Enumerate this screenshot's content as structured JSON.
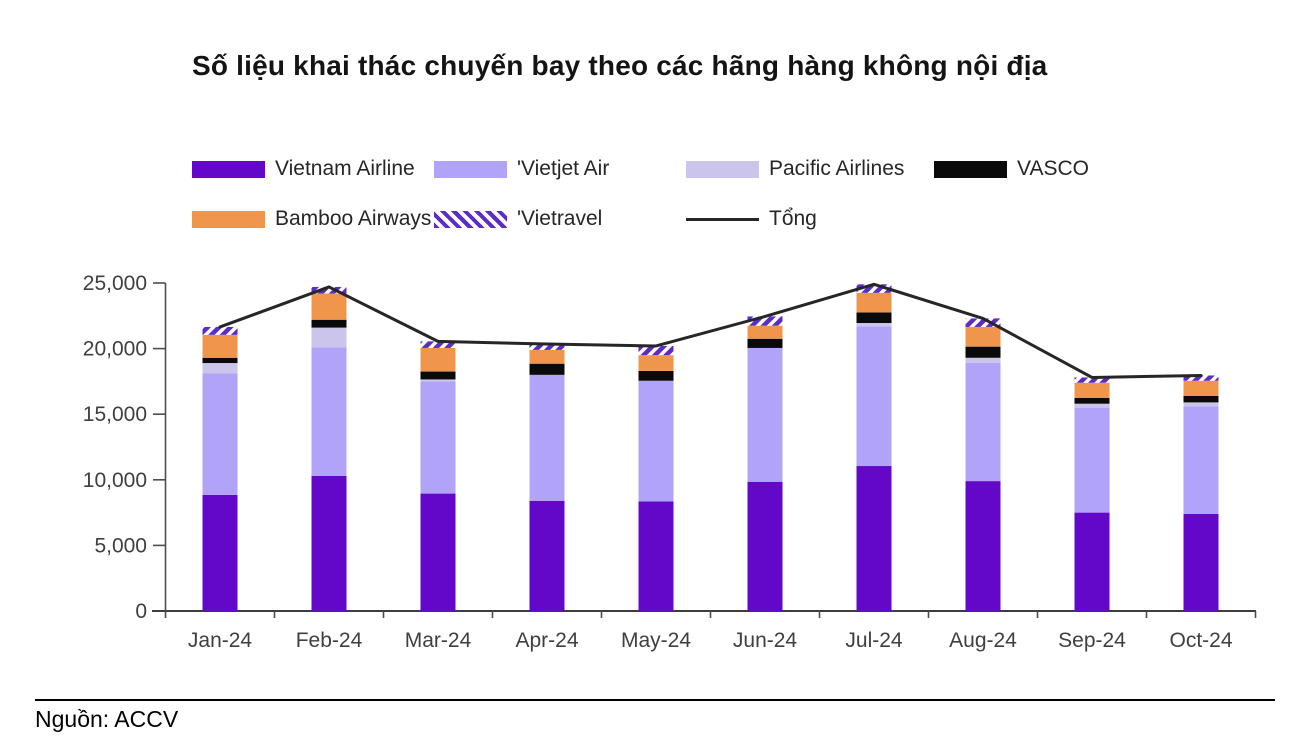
{
  "title": "Số liệu khai thác chuyến bay theo các hãng hàng không nội địa",
  "legend": {
    "items": [
      {
        "label": "Vietnam Airline",
        "swatch": "solid",
        "color": "#6307C8"
      },
      {
        "label": "'Vietjet Air",
        "swatch": "solid",
        "color": "#B0A3F8"
      },
      {
        "label": "Pacific Airlines",
        "swatch": "solid",
        "color": "#CBC4EB"
      },
      {
        "label": "VASCO",
        "swatch": "solid",
        "color": "#0A0A0A"
      },
      {
        "label": "Bamboo Airways",
        "swatch": "solid",
        "color": "#F0964C"
      },
      {
        "label": "'Vietravel",
        "swatch": "stripes",
        "color": "#5C2BC8"
      },
      {
        "label": "Tổng",
        "swatch": "line",
        "color": "#262626"
      }
    ]
  },
  "chart_data": {
    "type": "bar",
    "subtype": "stacked-bars-with-total-line",
    "title": "Số liệu khai thác chuyến bay theo các hãng hàng không nội địa",
    "categories": [
      "Jan-24",
      "Feb-24",
      "Mar-24",
      "Apr-24",
      "May-24",
      "Jun-24",
      "Jul-24",
      "Aug-24",
      "Sep-24",
      "Oct-24"
    ],
    "series": [
      {
        "name": "Vietnam Airline",
        "color": "#6307C8",
        "values": [
          8850,
          10300,
          8950,
          8400,
          8350,
          9850,
          11050,
          9900,
          7500,
          7400
        ]
      },
      {
        "name": "Vietjet Air",
        "color": "#B0A3F8",
        "values": [
          9250,
          9800,
          8550,
          9600,
          9200,
          10200,
          10650,
          9000,
          8000,
          8200
        ]
      },
      {
        "name": "Pacific Airlines",
        "color": "#CBC4EB",
        "values": [
          800,
          1500,
          150,
          0,
          0,
          0,
          250,
          400,
          300,
          300
        ]
      },
      {
        "name": "VASCO",
        "color": "#0A0A0A",
        "values": [
          400,
          600,
          600,
          850,
          750,
          700,
          800,
          850,
          450,
          500
        ]
      },
      {
        "name": "Bamboo Airways",
        "color": "#F0964C",
        "values": [
          1750,
          2000,
          1800,
          1050,
          1200,
          1000,
          1500,
          1500,
          1150,
          1150
        ]
      },
      {
        "name": "Vietravel",
        "color": "#5C2BC8",
        "pattern": "diagonal-stripes",
        "values": [
          600,
          500,
          500,
          450,
          700,
          700,
          650,
          650,
          400,
          400
        ]
      }
    ],
    "line_series": {
      "name": "Tổng",
      "color": "#262626",
      "values": [
        21650,
        24700,
        20550,
        20350,
        20200,
        22450,
        24900,
        22300,
        17800,
        17950
      ]
    },
    "xlabel": "",
    "ylabel": "",
    "ylim": [
      0,
      25000
    ],
    "ytick_step": 5000,
    "ytick_labels": [
      "0",
      "5,000",
      "10,000",
      "15,000",
      "20,000",
      "25,000"
    ],
    "grid": false,
    "legend_position": "top"
  },
  "footer": {
    "source_label": "Nguồn: ACCV"
  }
}
